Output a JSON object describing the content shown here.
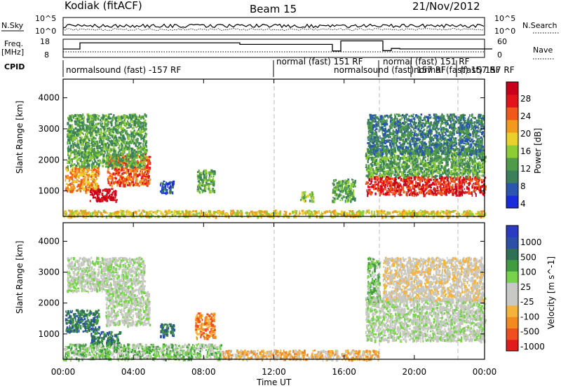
{
  "header": {
    "site": "Kodiak (fitACF)",
    "beam": "Beam 15",
    "date": "21/Nov/2012"
  },
  "top_panels": {
    "noise_left_label": "N.Sky",
    "noise_right_label": "N.Search",
    "noise_ticks_left": [
      "10^5",
      "10^0"
    ],
    "noise_ticks_right": [
      "10^5",
      "10^0"
    ],
    "freq_label_line1": "Freq.",
    "freq_label_line2": "[MHz]",
    "freq_ticks": [
      "18",
      "8"
    ],
    "nave_label": "Nave",
    "nave_ticks": [
      "60",
      "0"
    ],
    "cpid_label": "CPID",
    "cpid_segments": [
      "normalsound (fast) -157 RF",
      "normal (fast) 151 RF",
      "normalsound (fast) 157 RF",
      "normal (fast) 151 RF",
      "normal (fast) 157 RF",
      "(fast) 157 RF"
    ]
  },
  "x_axis": {
    "label": "Time UT",
    "ticks": [
      "00:00",
      "04:00",
      "08:00",
      "12:00",
      "16:00",
      "20:00",
      "00:00"
    ]
  },
  "chart_data": [
    {
      "type": "heatmap",
      "panel": "power",
      "ylabel": "Slant Range [km]",
      "yticks": [
        1000,
        2000,
        3000,
        4000
      ],
      "ylim": [
        180,
        4600
      ],
      "xlim": [
        0,
        24
      ],
      "colorbar": {
        "label": "Power [dB]",
        "ticks": [
          "28",
          "24",
          "20",
          "16",
          "12",
          "8",
          "4"
        ],
        "colors": [
          "#1a2bdc",
          "#2a56b0",
          "#3b7f5b",
          "#4f9b4a",
          "#8ccc35",
          "#e9d02a",
          "#f29a1e",
          "#ef5a1a",
          "#e2141a",
          "#c8001a"
        ]
      },
      "regions": [
        {
          "t0": 0.1,
          "t1": 2.0,
          "r0": 1000,
          "r1": 1800,
          "level": 6
        },
        {
          "t0": 1.5,
          "t1": 3.0,
          "r0": 700,
          "r1": 1100,
          "level": 9
        },
        {
          "t0": 2.5,
          "t1": 4.9,
          "r0": 1200,
          "r1": 2200,
          "level": 7
        },
        {
          "t0": 0.2,
          "t1": 4.7,
          "r0": 1800,
          "r1": 3500,
          "level": 3
        },
        {
          "t0": 5.5,
          "t1": 6.3,
          "r0": 950,
          "r1": 1350,
          "level": 1
        },
        {
          "t0": 7.6,
          "t1": 8.6,
          "r0": 1000,
          "r1": 1700,
          "level": 3
        },
        {
          "t0": 13.5,
          "t1": 14.2,
          "r0": 700,
          "r1": 1000,
          "level": 4
        },
        {
          "t0": 15.3,
          "t1": 16.6,
          "r0": 700,
          "r1": 1400,
          "level": 3
        },
        {
          "t0": 17.2,
          "t1": 24.0,
          "r0": 900,
          "r1": 1500,
          "level": 8
        },
        {
          "t0": 17.2,
          "t1": 24.0,
          "r0": 1500,
          "r1": 2400,
          "level": 3
        },
        {
          "t0": 17.3,
          "t1": 23.9,
          "r0": 2200,
          "r1": 3500,
          "level": 2
        },
        {
          "t0": 0.0,
          "t1": 24.0,
          "r0": 200,
          "r1": 400,
          "level": 5
        }
      ]
    },
    {
      "type": "heatmap",
      "panel": "velocity",
      "ylabel": "Slant Range [km]",
      "yticks": [
        1000,
        2000,
        3000,
        4000
      ],
      "ylim": [
        180,
        4600
      ],
      "xlim": [
        0,
        24
      ],
      "colorbar": {
        "label": "Velocity [m s^-1]",
        "ticks": [
          "1000",
          "500",
          "100",
          "25",
          "-25",
          "-100",
          "-500",
          "-1000"
        ],
        "colors": [
          "#e11a1a",
          "#ef4e1e",
          "#f18a1f",
          "#f4b33a",
          "#c8c8c4",
          "#c8c8c4",
          "#77d34a",
          "#3f9c3f",
          "#2f6f55",
          "#2c4fa8",
          "#2c3cc2"
        ]
      },
      "regions": [
        {
          "t0": 0.1,
          "t1": 2.0,
          "r0": 1100,
          "r1": 1800,
          "level": 8
        },
        {
          "t0": 1.5,
          "t1": 3.2,
          "r0": 700,
          "r1": 1100,
          "level": 8
        },
        {
          "t0": 2.4,
          "t1": 4.9,
          "r0": 1300,
          "r1": 2400,
          "level": 5
        },
        {
          "t0": 0.2,
          "t1": 4.6,
          "r0": 2400,
          "r1": 3500,
          "level": 5
        },
        {
          "t0": 5.5,
          "t1": 6.3,
          "r0": 950,
          "r1": 1350,
          "level": 8
        },
        {
          "t0": 7.5,
          "t1": 8.6,
          "r0": 900,
          "r1": 1700,
          "level": 2
        },
        {
          "t0": 17.3,
          "t1": 18.0,
          "r0": 2000,
          "r1": 3500,
          "level": 6
        },
        {
          "t0": 17.2,
          "t1": 24.0,
          "r0": 800,
          "r1": 2200,
          "level": 5
        },
        {
          "t0": 18.2,
          "t1": 23.9,
          "r0": 2100,
          "r1": 3500,
          "level": 4
        },
        {
          "t0": 9.0,
          "t1": 18.0,
          "r0": 200,
          "r1": 500,
          "level": 3
        },
        {
          "t0": 0.0,
          "t1": 9.0,
          "r0": 200,
          "r1": 700,
          "level": 6
        }
      ]
    }
  ]
}
